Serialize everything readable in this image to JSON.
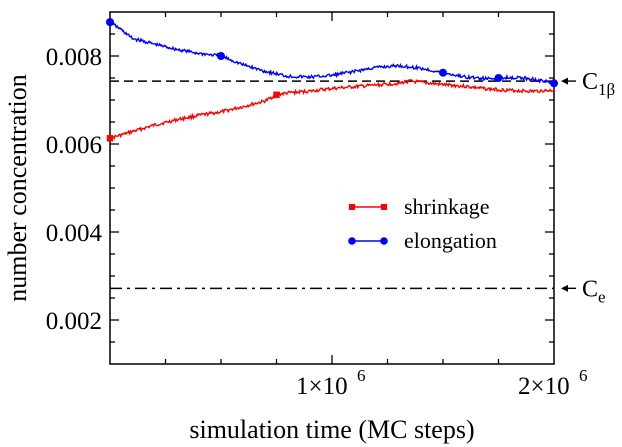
{
  "chart_data": {
    "type": "line",
    "xlabel": "simulation time (MC steps)",
    "ylabel": "number concentration",
    "xlim": [
      0,
      2000000
    ],
    "ylim": [
      0.001,
      0.009
    ],
    "x_ticks": [
      {
        "value": 1000000,
        "mantissa": "1×10",
        "exp": "6"
      },
      {
        "value": 2000000,
        "mantissa": "2×10",
        "exp": "6"
      }
    ],
    "y_ticks": [
      {
        "value": 0.002,
        "label": "0.002"
      },
      {
        "value": 0.004,
        "label": "0.004"
      },
      {
        "value": 0.006,
        "label": "0.006"
      },
      {
        "value": 0.008,
        "label": "0.008"
      }
    ],
    "grid": false,
    "legend": "center-right",
    "series": [
      {
        "name": "shrinkage",
        "color": "#ff0000",
        "marker": "square",
        "x": [
          0,
          100000,
          200000,
          300000,
          400000,
          500000,
          600000,
          700000,
          750000,
          800000,
          900000,
          1000000,
          1100000,
          1200000,
          1300000,
          1350000,
          1400000,
          1500000,
          1600000,
          1700000,
          1800000,
          1900000,
          2000000
        ],
        "y": [
          0.00613,
          0.00628,
          0.00643,
          0.00655,
          0.00665,
          0.00673,
          0.00685,
          0.00698,
          0.00712,
          0.00716,
          0.0072,
          0.00726,
          0.0073,
          0.00734,
          0.00738,
          0.00743,
          0.0074,
          0.00735,
          0.00731,
          0.00725,
          0.00722,
          0.0072,
          0.00722
        ],
        "markers_x": [
          0,
          750000
        ]
      },
      {
        "name": "elongation",
        "color": "#0000ff",
        "marker": "circle",
        "x": [
          0,
          50000,
          100000,
          200000,
          300000,
          400000,
          500000,
          600000,
          700000,
          800000,
          900000,
          1000000,
          1100000,
          1200000,
          1300000,
          1400000,
          1500000,
          1600000,
          1700000,
          1800000,
          1900000,
          2000000
        ],
        "y": [
          0.00877,
          0.0086,
          0.0084,
          0.00827,
          0.00815,
          0.00806,
          0.008,
          0.0078,
          0.00765,
          0.00754,
          0.00752,
          0.00756,
          0.00765,
          0.00774,
          0.00778,
          0.00772,
          0.00762,
          0.00752,
          0.00748,
          0.00752,
          0.00748,
          0.00738
        ],
        "markers_x": [
          0,
          500000,
          1500000,
          1750000,
          2000000
        ]
      }
    ],
    "reference_lines": [
      {
        "y": 0.00743,
        "style": "dashed",
        "label_main": "C",
        "label_sub": "1β"
      },
      {
        "y": 0.00272,
        "style": "dashdot",
        "label_main": "C",
        "label_sub": "e"
      }
    ]
  }
}
